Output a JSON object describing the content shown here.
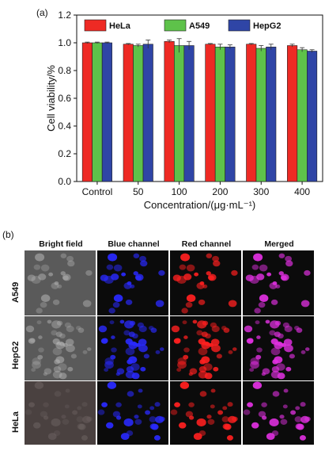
{
  "panel_a_label": "(a)",
  "panel_b_label": "(b)",
  "chart_data": {
    "type": "bar",
    "ylabel": "Cell viability/%",
    "xlabel": "Concentration/(μg·mL⁻¹)",
    "categories": [
      "Control",
      "50",
      "100",
      "200",
      "300",
      "400"
    ],
    "ylim": [
      0.0,
      1.2
    ],
    "yticks": [
      "0.0",
      "0.2",
      "0.4",
      "0.6",
      "0.8",
      "1.0",
      "1.2"
    ],
    "legend_position": "top",
    "series": [
      {
        "name": "HeLa",
        "color": "#ee2a24",
        "values": [
          1.0,
          0.99,
          1.01,
          0.99,
          0.99,
          0.98
        ],
        "errors": [
          0.005,
          0.005,
          0.01,
          0.005,
          0.005,
          0.01
        ]
      },
      {
        "name": "A549",
        "color": "#5ec24a",
        "values": [
          1.0,
          0.98,
          0.98,
          0.97,
          0.96,
          0.95
        ],
        "errors": [
          0.005,
          0.01,
          0.05,
          0.02,
          0.02,
          0.015
        ]
      },
      {
        "name": "HepG2",
        "color": "#2f45a6",
        "values": [
          1.0,
          0.99,
          0.98,
          0.97,
          0.97,
          0.94
        ],
        "errors": [
          0.005,
          0.03,
          0.03,
          0.015,
          0.02,
          0.01
        ]
      }
    ]
  },
  "microscopy": {
    "columns": [
      "Bright field",
      "Blue channel",
      "Red channel",
      "Merged"
    ],
    "rows": [
      "A549",
      "HepG2",
      "HeLa"
    ],
    "channel_colors": {
      "bright_field": "#9a9a9a",
      "blue_channel": "#2a2aff",
      "red_channel": "#ff2020",
      "merged": "#e030e0",
      "background": "#0b0b0b"
    }
  }
}
